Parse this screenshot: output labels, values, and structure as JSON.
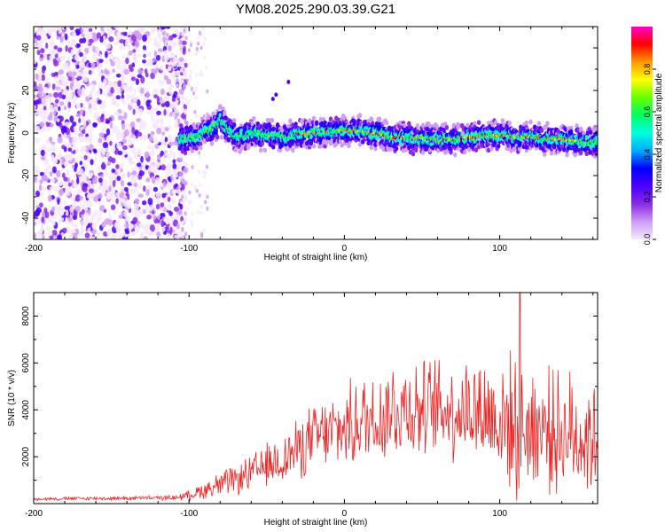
{
  "title": "YM08.2025.290.03.39.G21",
  "chart_data": [
    {
      "type": "heatmap",
      "name": "spectrogram",
      "xlabel": "Height of straight line (km)",
      "ylabel": "Frequency (Hz)",
      "xlim": [
        -200,
        163
      ],
      "ylim": [
        -50,
        50
      ],
      "xticks": [
        -200,
        -100,
        0,
        100
      ],
      "yticks": [
        -40,
        -20,
        0,
        20,
        40
      ],
      "ytick_labels": [
        "-40",
        "-20",
        "0",
        "20",
        "40"
      ],
      "xtick_labels": [
        "-200",
        "-100",
        "0",
        "100"
      ],
      "ridge": {
        "note": "frequency of the strongest signal vs height",
        "x": [
          -105,
          -95,
          -85,
          -80,
          -75,
          -70,
          -60,
          -50,
          -40,
          -30,
          -20,
          -10,
          0,
          10,
          20,
          30,
          40,
          50,
          60,
          70,
          80,
          90,
          100,
          110,
          120,
          130,
          140,
          150,
          160
        ],
        "y": [
          -3,
          -2,
          2,
          6,
          2,
          -2,
          0,
          -1,
          -2,
          -1,
          0,
          1,
          1,
          1,
          0,
          -2,
          -2,
          -3,
          -3,
          -3,
          -2,
          -1,
          -1,
          -2,
          -2,
          -3,
          -3,
          -4,
          -4
        ]
      },
      "noise_region_x": [
        -200,
        -108
      ],
      "colorbar": {
        "label": "Normalized spectral amplitude",
        "range": [
          0,
          1
        ],
        "ticks": [
          0.0,
          0.2,
          0.4,
          0.6,
          0.8
        ],
        "tick_labels": [
          "0.0",
          "0.2",
          "0.4",
          "0.6",
          "0.8"
        ],
        "colors": [
          "#f4e9fd",
          "#cf9cf5",
          "#8a2be2",
          "#4b00ff",
          "#0000ff",
          "#00aaff",
          "#00ffdd",
          "#00ff66",
          "#66ff00",
          "#ffff00",
          "#ff9900",
          "#ff0000",
          "#ff00cc"
        ]
      }
    },
    {
      "type": "line",
      "name": "snr",
      "xlabel": "Height of straight line (km)",
      "ylabel": "SNR (10 * v/v)",
      "xlim": [
        -200,
        163
      ],
      "ylim": [
        0,
        9000
      ],
      "xticks": [
        -200,
        -100,
        0,
        100
      ],
      "yticks": [
        2000,
        4000,
        6000,
        8000
      ],
      "xtick_labels": [
        "-200",
        "-100",
        "0",
        "100"
      ],
      "ytick_labels": [
        "2000",
        "4000",
        "6000",
        "8000"
      ],
      "line_color": "#ee2222",
      "envelope": {
        "note": "approximate mean / spread of the noisy SNR trace vs height",
        "x": [
          -200,
          -110,
          -100,
          -90,
          -80,
          -70,
          -60,
          -50,
          -40,
          -30,
          -20,
          -10,
          0,
          10,
          20,
          30,
          40,
          50,
          60,
          70,
          80,
          90,
          100,
          110,
          120,
          130,
          140,
          150,
          163
        ],
        "mean": [
          200,
          250,
          350,
          600,
          800,
          1000,
          1300,
          1600,
          1900,
          2300,
          2800,
          3000,
          3200,
          3500,
          3700,
          4000,
          4200,
          4000,
          4100,
          4000,
          4100,
          3900,
          3600,
          3300,
          3300,
          3200,
          3000,
          2900,
          2800
        ],
        "spread": [
          80,
          120,
          250,
          450,
          700,
          700,
          900,
          1100,
          1300,
          1500,
          1700,
          1800,
          2000,
          2300,
          2500,
          2600,
          2700,
          2400,
          2500,
          2500,
          2700,
          2900,
          3100,
          3500,
          3300,
          3000,
          3000,
          3100,
          3000
        ],
        "peak": {
          "x": 113,
          "y": 9000
        }
      }
    }
  ]
}
